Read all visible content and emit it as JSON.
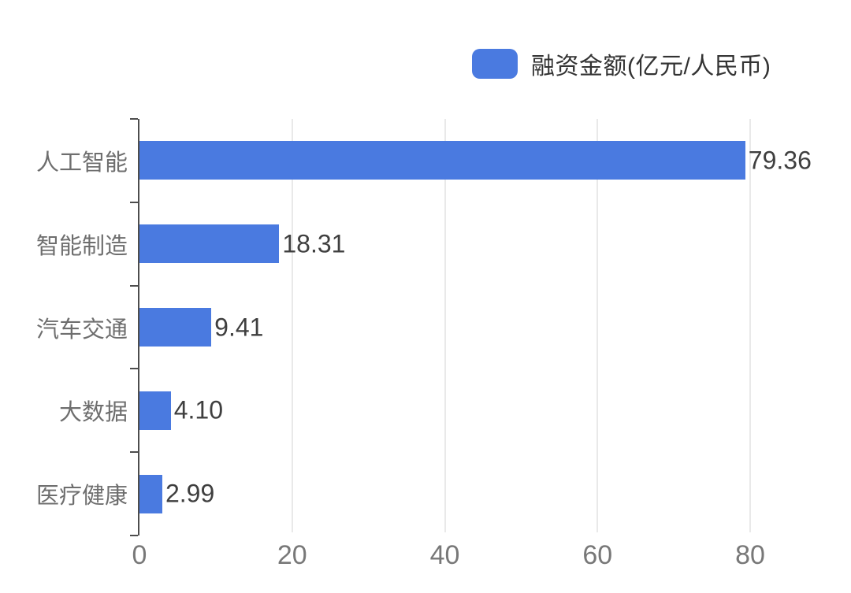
{
  "chart_data": {
    "type": "bar",
    "orientation": "horizontal",
    "title": "",
    "legend": {
      "label": "融资金额(亿元/人民币)",
      "position": "top-right"
    },
    "categories": [
      "人工智能",
      "智能制造",
      "汽车交通",
      "大数据",
      "医疗健康"
    ],
    "values": [
      79.36,
      18.31,
      9.41,
      4.1,
      2.99
    ],
    "value_labels": [
      "79.36",
      "18.31",
      "9.41",
      "4.10",
      "2.99"
    ],
    "xlabel": "",
    "ylabel": "",
    "x_ticks": [
      0,
      20,
      40,
      60,
      80
    ],
    "x_tick_labels": [
      "0",
      "20",
      "40",
      "60",
      "80"
    ],
    "xlim": [
      0,
      80
    ],
    "grid": true,
    "colors": {
      "bar": "#4a7ae0",
      "axis": "#4d4d4d",
      "grid": "#e9e9e9",
      "category_label": "#6e6e6e",
      "value_label": "#3f3f3f",
      "tick_label": "#787878",
      "legend_label": "#333333",
      "background": "#ffffff"
    }
  }
}
